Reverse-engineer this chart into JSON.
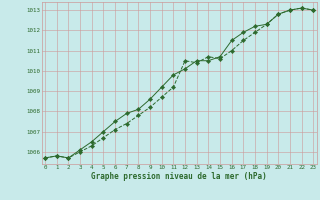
{
  "line1_x": [
    0,
    1,
    2,
    3,
    4,
    5,
    6,
    7,
    8,
    9,
    10,
    11,
    12,
    13,
    14,
    15,
    16,
    17,
    18,
    19,
    20,
    21,
    22,
    23
  ],
  "line1_y": [
    1005.7,
    1005.8,
    1005.7,
    1006.0,
    1006.3,
    1006.7,
    1007.1,
    1007.4,
    1007.8,
    1008.2,
    1008.7,
    1009.2,
    1010.5,
    1010.4,
    1010.7,
    1010.6,
    1011.0,
    1011.5,
    1011.9,
    1012.3,
    1012.8,
    1013.0,
    1013.1,
    1013.0
  ],
  "line2_x": [
    0,
    1,
    2,
    3,
    4,
    5,
    6,
    7,
    8,
    9,
    10,
    11,
    12,
    13,
    14,
    15,
    16,
    17,
    18,
    19,
    20,
    21,
    22,
    23
  ],
  "line2_y": [
    1005.7,
    1005.8,
    1005.7,
    1006.1,
    1006.5,
    1007.0,
    1007.5,
    1007.9,
    1008.1,
    1008.6,
    1009.2,
    1009.8,
    1010.1,
    1010.5,
    1010.5,
    1010.7,
    1011.5,
    1011.9,
    1012.2,
    1012.3,
    1012.8,
    1013.0,
    1013.1,
    1013.0
  ],
  "line_color": "#2d6a2d",
  "background_color": "#c8eaea",
  "grid_color": "#cc9999",
  "ylabel_values": [
    1006,
    1007,
    1008,
    1009,
    1010,
    1011,
    1012,
    1013
  ],
  "xlabel_values": [
    0,
    1,
    2,
    3,
    4,
    5,
    6,
    7,
    8,
    9,
    10,
    11,
    12,
    13,
    14,
    15,
    16,
    17,
    18,
    19,
    20,
    21,
    22,
    23
  ],
  "ylim": [
    1005.4,
    1013.4
  ],
  "xlim": [
    -0.3,
    23.3
  ],
  "xlabel": "Graphe pression niveau de la mer (hPa)",
  "xlabel_color": "#2d6a2d",
  "tick_color": "#2d6a2d",
  "marker": "D",
  "markersize": 2.2,
  "linewidth": 0.7,
  "tick_fontsize": 4.2
}
